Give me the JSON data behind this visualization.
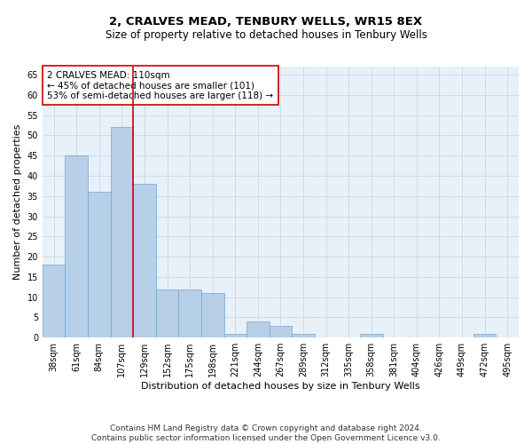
{
  "title": "2, CRALVES MEAD, TENBURY WELLS, WR15 8EX",
  "subtitle": "Size of property relative to detached houses in Tenbury Wells",
  "xlabel": "Distribution of detached houses by size in Tenbury Wells",
  "ylabel": "Number of detached properties",
  "footer_line1": "Contains HM Land Registry data © Crown copyright and database right 2024.",
  "footer_line2": "Contains public sector information licensed under the Open Government Licence v3.0.",
  "categories": [
    "38sqm",
    "61sqm",
    "84sqm",
    "107sqm",
    "129sqm",
    "152sqm",
    "175sqm",
    "198sqm",
    "221sqm",
    "244sqm",
    "267sqm",
    "289sqm",
    "312sqm",
    "335sqm",
    "358sqm",
    "381sqm",
    "404sqm",
    "426sqm",
    "449sqm",
    "472sqm",
    "495sqm"
  ],
  "values": [
    18,
    45,
    36,
    52,
    38,
    12,
    12,
    11,
    1,
    4,
    3,
    1,
    0,
    0,
    1,
    0,
    0,
    0,
    0,
    1,
    0
  ],
  "bar_color": "#b8cfe8",
  "bar_edge_color": "#6fa8d4",
  "bar_width": 1.0,
  "vline_x": 3.5,
  "vline_color": "#cc0000",
  "annotation_text": "2 CRALVES MEAD: 110sqm\n← 45% of detached houses are smaller (101)\n53% of semi-detached houses are larger (118) →",
  "annotation_box_color": "#ffffff",
  "annotation_box_edge_color": "#cc0000",
  "ylim": [
    0,
    67
  ],
  "yticks": [
    0,
    5,
    10,
    15,
    20,
    25,
    30,
    35,
    40,
    45,
    50,
    55,
    60,
    65
  ],
  "grid_color": "#c8d8e8",
  "background_color": "#e8f0f8",
  "fig_background_color": "#ffffff",
  "title_fontsize": 9.5,
  "subtitle_fontsize": 8.5,
  "xlabel_fontsize": 8,
  "ylabel_fontsize": 8,
  "tick_fontsize": 7,
  "annotation_fontsize": 7.5,
  "footer_fontsize": 6.5
}
